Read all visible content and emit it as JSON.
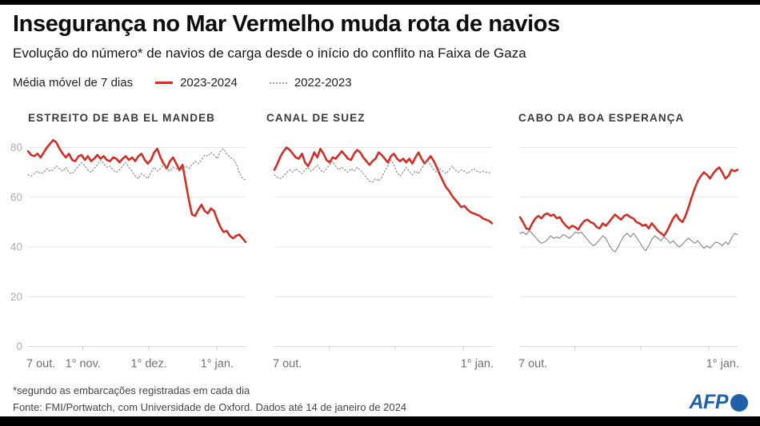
{
  "header": {
    "title": "Insegurança no Mar Vermelho muda rota de navios",
    "subtitle": "Evolução do número* de navios de carga desde o início do conflito na Faixa de Gaza"
  },
  "legend": {
    "label": "Média móvel de 7 dias",
    "series": [
      {
        "name": "2023-2024",
        "color": "#d02f27",
        "style": "solid"
      },
      {
        "name": "2022-2023",
        "color": "#8d8d8d",
        "style": "dotted"
      }
    ]
  },
  "footer": {
    "footnote": "*segundo as embarcações registradas em cada dia",
    "source": "Fonte: FMI/Portwatch, com Universidade de Oxford. Dados até 14 de janeiro de 2024",
    "logo_text": "AFP",
    "logo_icon": "afp-globe-icon",
    "logo_color": "#2061a9"
  },
  "chart_data": [
    {
      "type": "line",
      "title": "ESTREITO DE BAB EL MANDEB",
      "ylabel": "",
      "xlabel": "",
      "ylim": [
        0,
        88
      ],
      "y_ticks": [
        80,
        60,
        40,
        20,
        0
      ],
      "y_labels_visible": true,
      "grid": true,
      "domain_days": 99,
      "x_ticks": [
        {
          "label": "7 out.",
          "day": 0
        },
        {
          "label": "1° nov.",
          "day": 25
        },
        {
          "label": "1° dez.",
          "day": 55
        },
        {
          "label": "1° jan.",
          "day": 86
        }
      ],
      "series": [
        {
          "name": "2023-2024",
          "color": "#d02f27",
          "style": "solid",
          "width": 2.6,
          "values": [
            78.5,
            77,
            76.5,
            77.5,
            76,
            78,
            80,
            81.5,
            83,
            82,
            79.5,
            77.5,
            76,
            77.5,
            75,
            74.5,
            76.5,
            77,
            75,
            76.5,
            74.5,
            75.5,
            77,
            75.5,
            76.5,
            75,
            74.5,
            76,
            75.5,
            74,
            75.5,
            76.5,
            75,
            76,
            74.5,
            76.5,
            77.5,
            75,
            73.5,
            75,
            78,
            79.5,
            76,
            73.5,
            71.5,
            74.5,
            76,
            73.5,
            71,
            73,
            66,
            59,
            53,
            52.5,
            55,
            57,
            54.5,
            53.5,
            55.5,
            54.5,
            51,
            48,
            46,
            46.5,
            44.5,
            43.5,
            44.5,
            45,
            43.5,
            42
          ]
        },
        {
          "name": "2022-2023",
          "color": "#8d8d8d",
          "style": "dotted",
          "width": 1.2,
          "values": [
            69,
            68.5,
            69.5,
            70.5,
            69.5,
            70,
            71.5,
            70.5,
            71,
            72.5,
            71.5,
            70.5,
            72,
            70,
            69.5,
            71,
            72.5,
            74,
            72.5,
            71,
            70,
            71.5,
            73,
            75,
            73.5,
            72,
            72.5,
            71,
            70,
            71,
            72.5,
            74,
            72,
            70.5,
            68.5,
            67.5,
            69.5,
            68.5,
            67.5,
            70,
            72,
            70.5,
            71.5,
            73,
            71.5,
            70.5,
            72,
            71.5,
            70.5,
            71.5,
            72.5,
            71.5,
            73,
            74.5,
            73.5,
            75,
            77,
            76.5,
            78,
            77,
            75.5,
            78.5,
            79.5,
            77.5,
            76,
            75.5,
            73.5,
            70,
            67.5,
            67
          ]
        }
      ]
    },
    {
      "type": "line",
      "title": "CANAL DE SUEZ",
      "ylabel": "",
      "xlabel": "",
      "ylim": [
        0,
        88
      ],
      "y_ticks": [
        80,
        60,
        40,
        20,
        0
      ],
      "y_labels_visible": false,
      "grid": true,
      "domain_days": 99,
      "x_ticks": [
        {
          "label": "7 out.",
          "day": 0
        },
        {
          "label": "1° jan.",
          "day": 99
        }
      ],
      "tick_marks_days": [
        25,
        55,
        86
      ],
      "series": [
        {
          "name": "2023-2024",
          "color": "#d02f27",
          "style": "solid",
          "width": 2.6,
          "values": [
            71,
            73.5,
            76.5,
            78.5,
            80,
            79,
            77.5,
            76,
            75.5,
            77.5,
            74,
            72.5,
            75,
            78,
            76,
            79.5,
            77.5,
            75,
            74,
            76,
            75.5,
            77,
            78.5,
            77,
            75.5,
            75,
            77.5,
            79,
            78,
            76,
            74.5,
            73,
            74.5,
            75.5,
            78,
            77,
            75.5,
            74,
            76.5,
            77.5,
            75.5,
            74.5,
            75.5,
            74,
            75.5,
            73.5,
            76,
            78,
            75.5,
            73.5,
            75,
            76.5,
            74.5,
            72,
            69,
            66.5,
            64,
            62.5,
            60.5,
            59,
            57.5,
            56,
            56.5,
            55,
            54,
            53.5,
            53,
            52.5,
            51.5,
            51,
            50.5,
            49.5
          ]
        },
        {
          "name": "2022-2023",
          "color": "#8d8d8d",
          "style": "dotted",
          "width": 1.2,
          "values": [
            69,
            68,
            67.5,
            68.5,
            70,
            71,
            70,
            71.5,
            70.5,
            69.5,
            71,
            72,
            70.5,
            71.5,
            73,
            71,
            70,
            71.5,
            73,
            74.5,
            72.5,
            71,
            72,
            71,
            70,
            71.5,
            70.5,
            72,
            71,
            69.5,
            68,
            66.5,
            66,
            67.5,
            66.5,
            68,
            70.5,
            72.5,
            75,
            73,
            70,
            68.5,
            70,
            72,
            70.5,
            69,
            70.5,
            69.5,
            71.5,
            73.5,
            75,
            73,
            71,
            70,
            71.5,
            70.5,
            69.5,
            71,
            72.5,
            71,
            70,
            71,
            70.5,
            69.5,
            70.5,
            71.5,
            70.5,
            70,
            70.5,
            70,
            69.8,
            70
          ]
        }
      ]
    },
    {
      "type": "line",
      "title": "CABO DA BOA ESPERANÇA",
      "ylabel": "",
      "xlabel": "",
      "ylim": [
        0,
        88
      ],
      "y_ticks": [
        80,
        60,
        40,
        20,
        0
      ],
      "y_labels_visible": false,
      "grid": true,
      "domain_days": 99,
      "x_ticks": [
        {
          "label": "7 out.",
          "day": 0
        },
        {
          "label": "1° jan.",
          "day": 99
        }
      ],
      "tick_marks_days": [
        25,
        55,
        86
      ],
      "series": [
        {
          "name": "2023-2024",
          "color": "#d02f27",
          "style": "solid",
          "width": 2.6,
          "values": [
            52,
            50,
            47.5,
            47,
            49.5,
            51.5,
            52.5,
            51.5,
            53,
            53.5,
            52.5,
            53,
            51.5,
            52,
            50,
            48.5,
            47.5,
            48.5,
            48,
            47,
            49,
            50.5,
            51,
            50,
            49.5,
            48,
            47.5,
            49.5,
            48.5,
            50,
            51.5,
            53,
            52,
            51,
            52.5,
            53,
            52,
            51.5,
            50,
            49.5,
            48.5,
            49,
            47.5,
            49.5,
            48,
            46.5,
            45.5,
            44.5,
            46.5,
            49,
            51.5,
            53,
            51,
            50,
            52.5,
            56,
            60,
            63.5,
            66.5,
            68.5,
            70,
            69,
            67.5,
            69.5,
            71,
            72,
            70,
            67.5,
            68.5,
            71,
            70.5,
            71
          ]
        },
        {
          "name": "2022-2023",
          "color": "#8d8d8d",
          "style": "solid_thin",
          "width": 1.2,
          "values": [
            45.5,
            46,
            45,
            46.5,
            45.5,
            44,
            42.5,
            41.5,
            42,
            43,
            44.5,
            43.5,
            44,
            43.5,
            45,
            44.5,
            43.5,
            44.5,
            46,
            45.5,
            46,
            44.5,
            43,
            41.5,
            40.5,
            41.5,
            43,
            44.5,
            43.5,
            41,
            39,
            38,
            40,
            42.5,
            44.5,
            45.5,
            44,
            45.5,
            44,
            42,
            40,
            38.5,
            40.5,
            43,
            44.5,
            43.5,
            42.5,
            44,
            43,
            41.5,
            42.5,
            41,
            40,
            41,
            42.5,
            43.5,
            42.5,
            41.5,
            42.5,
            41,
            39.5,
            40.5,
            39.5,
            41,
            42,
            41.5,
            40.5,
            42,
            41,
            43.5,
            45.5,
            45
          ]
        }
      ]
    }
  ]
}
